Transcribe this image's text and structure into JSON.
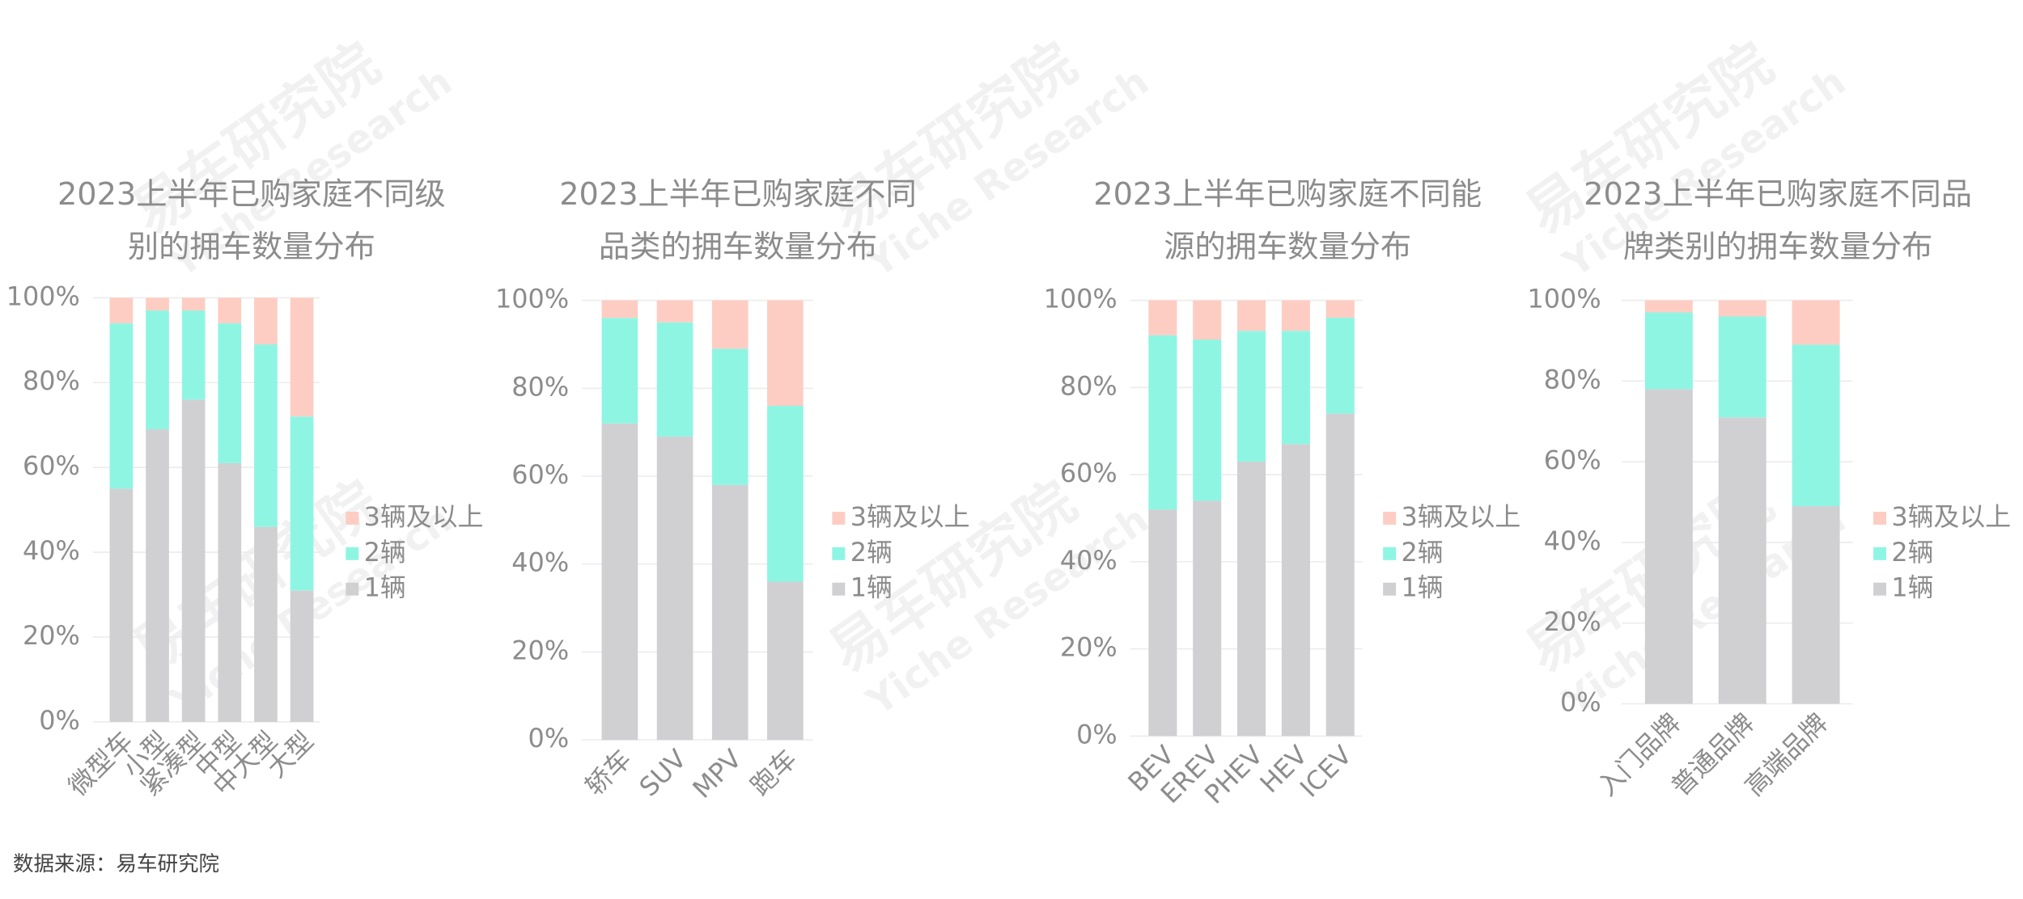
{
  "source": "数据来源：易车研究院",
  "watermark": [
    "易车研究院",
    "Yiche Research"
  ],
  "chart_data": [
    {
      "type": "bar",
      "stacked": true,
      "title": [
        "2023上半年已购家庭不同级",
        "别的拥车数量分布"
      ],
      "categories": [
        "微型车",
        "小型",
        "紧凑型",
        "中型",
        "中大型",
        "大型"
      ],
      "series": [
        {
          "name": "1辆",
          "color": "#d0d0d2",
          "values": [
            55,
            69,
            76,
            61,
            46,
            31
          ]
        },
        {
          "name": "2辆",
          "color": "#8ef5e3",
          "values": [
            39,
            28,
            21,
            33,
            43,
            41
          ]
        },
        {
          "name": "3辆及以上",
          "color": "#fdcdc3",
          "values": [
            6,
            3,
            3,
            6,
            11,
            28
          ]
        }
      ],
      "ylim": [
        0,
        100
      ],
      "yticks": [
        {
          "value": 0,
          "label": "0%"
        },
        {
          "value": 20,
          "label": "20%"
        },
        {
          "value": 40,
          "label": "40%"
        },
        {
          "value": 60,
          "label": "60%"
        },
        {
          "value": 80,
          "label": "80%"
        },
        {
          "value": 100,
          "label": "100%"
        }
      ],
      "grid": true
    },
    {
      "type": "bar",
      "stacked": true,
      "title": [
        "2023上半年已购家庭不同",
        "品类的拥车数量分布"
      ],
      "categories": [
        "轿车",
        "SUV",
        "MPV",
        "跑车"
      ],
      "series": [
        {
          "name": "1辆",
          "color": "#d0d0d2",
          "values": [
            72,
            69,
            58,
            36
          ]
        },
        {
          "name": "2辆",
          "color": "#8ef5e3",
          "values": [
            24,
            26,
            31,
            40
          ]
        },
        {
          "name": "3辆及以上",
          "color": "#fdcdc3",
          "values": [
            4,
            5,
            11,
            24
          ]
        }
      ],
      "ylim": [
        0,
        100
      ],
      "yticks": [
        {
          "value": 0,
          "label": "0%"
        },
        {
          "value": 20,
          "label": "20%"
        },
        {
          "value": 40,
          "label": "40%"
        },
        {
          "value": 60,
          "label": "60%"
        },
        {
          "value": 80,
          "label": "80%"
        },
        {
          "value": 100,
          "label": "100%"
        }
      ],
      "grid": true
    },
    {
      "type": "bar",
      "stacked": true,
      "title": [
        "2023上半年已购家庭不同能",
        "源的拥车数量分布"
      ],
      "categories": [
        "BEV",
        "EREV",
        "PHEV",
        "HEV",
        "ICEV"
      ],
      "series": [
        {
          "name": "1辆",
          "color": "#d0d0d2",
          "values": [
            52,
            54,
            63,
            67,
            74
          ]
        },
        {
          "name": "2辆",
          "color": "#8ef5e3",
          "values": [
            40,
            37,
            30,
            26,
            22
          ]
        },
        {
          "name": "3辆及以上",
          "color": "#fdcdc3",
          "values": [
            8,
            9,
            7,
            7,
            4
          ]
        }
      ],
      "ylim": [
        0,
        100
      ],
      "yticks": [
        {
          "value": 0,
          "label": "0%"
        },
        {
          "value": 20,
          "label": "20%"
        },
        {
          "value": 40,
          "label": "40%"
        },
        {
          "value": 60,
          "label": "60%"
        },
        {
          "value": 80,
          "label": "80%"
        },
        {
          "value": 100,
          "label": "100%"
        }
      ],
      "grid": true
    },
    {
      "type": "bar",
      "stacked": true,
      "title": [
        "2023上半年已购家庭不同品",
        "牌类别的拥车数量分布"
      ],
      "categories": [
        "入门品牌",
        "普通品牌",
        "高端品牌"
      ],
      "series": [
        {
          "name": "1辆",
          "color": "#d0d0d2",
          "values": [
            78,
            71,
            49
          ]
        },
        {
          "name": "2辆",
          "color": "#8ef5e3",
          "values": [
            19,
            25,
            40
          ]
        },
        {
          "name": "3辆及以上",
          "color": "#fdcdc3",
          "values": [
            3,
            4,
            11
          ]
        }
      ],
      "ylim": [
        0,
        100
      ],
      "yticks": [
        {
          "value": 0,
          "label": "0%"
        },
        {
          "value": 20,
          "label": "20%"
        },
        {
          "value": 40,
          "label": "40%"
        },
        {
          "value": 60,
          "label": "60%"
        },
        {
          "value": 80,
          "label": "80%"
        },
        {
          "value": 100,
          "label": "100%"
        }
      ],
      "grid": true
    }
  ]
}
